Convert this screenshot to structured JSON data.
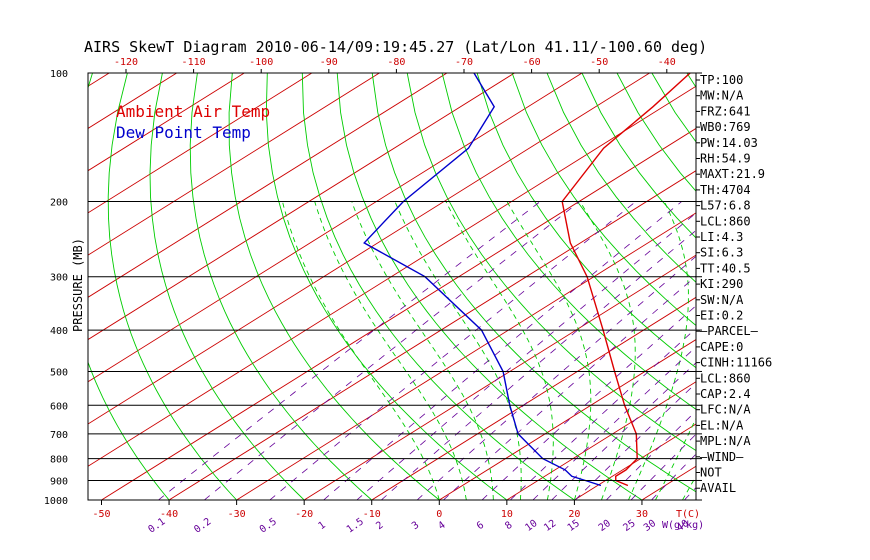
{
  "title": "AIRS SkewT Diagram 2010-06-14/09:19:45.27 (Lat/Lon 41.11/-100.60 deg)",
  "legend": {
    "air": "Ambient Air Temp",
    "dew": "Dew Point Temp"
  },
  "colors": {
    "air": "#dd0000",
    "dew": "#0000cc",
    "isotherm": "#cc0000",
    "dry_adiabat": "#00cc00",
    "moist_adiabat": "#00cc00",
    "mixing": "#660099",
    "frame": "#000000"
  },
  "chart_data": {
    "type": "line",
    "title": "AIRS SkewT Diagram 2010-06-14/09:19:45.27 (Lat/Lon 41.11/-100.60 deg)",
    "ylabel": "PRESSURE (MB)",
    "xlabel": "T(C)",
    "mixing_unit": "W(g/kg)",
    "p_range": [
      1000,
      100
    ],
    "t_range_bottom": [
      -52,
      38
    ],
    "pressure_ticks": [
      "100",
      "200",
      "300",
      "400",
      "500",
      "600",
      "700",
      "800",
      "900",
      "1000"
    ],
    "bottom_temp_ticks": [
      -50,
      -40,
      -30,
      -20,
      -10,
      0,
      10,
      20,
      30
    ],
    "top_temp_ticks": [
      -120,
      -110,
      -100,
      -90,
      -80,
      -70,
      -60,
      -50,
      -40
    ],
    "mixing_ratio_labels": [
      "0.1",
      "0.2",
      "0.5",
      "1",
      "1.5",
      "2",
      "3",
      "4",
      "6",
      "8",
      "10",
      "12",
      "15",
      "20",
      "25",
      "30",
      "40"
    ],
    "series": [
      {
        "name": "Ambient Air Temp",
        "p": [
          925,
          900,
          880,
          850,
          800,
          700,
          600,
          500,
          400,
          300,
          250,
          200,
          150,
          120,
          100
        ],
        "t": [
          24.5,
          21.5,
          20.5,
          20.5,
          19.5,
          13.5,
          5,
          -4.5,
          -16,
          -31,
          -41.5,
          -52.5,
          -59,
          -61.5,
          -64
        ]
      },
      {
        "name": "Dew Point Temp",
        "p": [
          925,
          900,
          880,
          850,
          800,
          700,
          600,
          500,
          400,
          300,
          250,
          200,
          150,
          120,
          100
        ],
        "t": [
          20.5,
          17,
          14,
          11.5,
          5.5,
          -4,
          -12,
          -21,
          -34,
          -55,
          -72,
          -76,
          -79,
          -85,
          -96
        ]
      }
    ],
    "indices": [
      "TP:100",
      "MW:N/A",
      "FRZ:641",
      "WB0:769",
      "PW:14.03",
      "RH:54.9",
      "MAXT:21.9",
      "TH:4704",
      "L57:6.8",
      "LCL:860",
      "LI:4.3",
      "SI:6.3",
      "TT:40.5",
      "KI:290",
      "SW:N/A",
      "EI:0.2",
      "–PARCEL–",
      "CAPE:0",
      "CINH:11166",
      "LCL:860",
      "CAP:2.4",
      "LFC:N/A",
      "EL:N/A",
      "MPL:N/A",
      "–WIND–",
      "NOT",
      "AVAIL"
    ]
  }
}
